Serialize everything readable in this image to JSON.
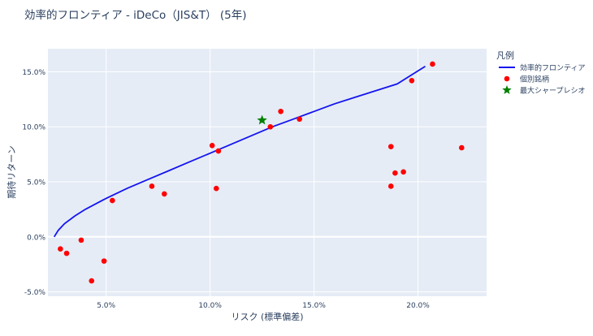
{
  "chart_data": {
    "type": "scatter",
    "title": "効率的フロンティア - iDeCo（JIS&T） (5年)",
    "xlabel": "リスク (標準偏差)",
    "ylabel": "期待リターン",
    "xlim": [
      0.022,
      0.233
    ],
    "ylim": [
      -0.054,
      0.171
    ],
    "x_ticks": [
      {
        "value": 0.05,
        "label": "5.0%"
      },
      {
        "value": 0.1,
        "label": "10.0%"
      },
      {
        "value": 0.15,
        "label": "15.0%"
      },
      {
        "value": 0.2,
        "label": "20.0%"
      }
    ],
    "y_ticks": [
      {
        "value": -0.05,
        "label": "-5.0%"
      },
      {
        "value": 0.0,
        "label": "0.0%"
      },
      {
        "value": 0.05,
        "label": "5.0%"
      },
      {
        "value": 0.1,
        "label": "10.0%"
      },
      {
        "value": 0.15,
        "label": "15.0%"
      }
    ],
    "grid": true,
    "legend": {
      "title": "凡例",
      "position": "right",
      "entries": [
        {
          "label": "効率的フロンティア",
          "kind": "line",
          "color": "#1414f0"
        },
        {
          "label": "個別銘柄",
          "kind": "dot",
          "color": "#ff0000"
        },
        {
          "label": "最大シャープレシオ",
          "kind": "star",
          "color": "#008000"
        }
      ]
    },
    "series": [
      {
        "name": "効率的フロンティア",
        "kind": "line",
        "color": "#1414f0",
        "points": [
          [
            0.025,
            0.0
          ],
          [
            0.027,
            0.006
          ],
          [
            0.03,
            0.012
          ],
          [
            0.035,
            0.019
          ],
          [
            0.04,
            0.025
          ],
          [
            0.05,
            0.035
          ],
          [
            0.06,
            0.044
          ],
          [
            0.07,
            0.052
          ],
          [
            0.08,
            0.06
          ],
          [
            0.09,
            0.068
          ],
          [
            0.1,
            0.076
          ],
          [
            0.11,
            0.084
          ],
          [
            0.12,
            0.092
          ],
          [
            0.13,
            0.1
          ],
          [
            0.14,
            0.107
          ],
          [
            0.15,
            0.114
          ],
          [
            0.16,
            0.121
          ],
          [
            0.17,
            0.127
          ],
          [
            0.18,
            0.133
          ],
          [
            0.19,
            0.139
          ],
          [
            0.2035,
            0.155
          ]
        ]
      },
      {
        "name": "個別銘柄",
        "kind": "dot",
        "color": "#ff0000",
        "points": [
          [
            0.028,
            -0.011
          ],
          [
            0.031,
            -0.015
          ],
          [
            0.038,
            -0.003
          ],
          [
            0.043,
            -0.04
          ],
          [
            0.049,
            -0.022
          ],
          [
            0.053,
            0.033
          ],
          [
            0.072,
            0.046
          ],
          [
            0.078,
            0.039
          ],
          [
            0.101,
            0.083
          ],
          [
            0.103,
            0.044
          ],
          [
            0.104,
            0.078
          ],
          [
            0.129,
            0.1
          ],
          [
            0.134,
            0.114
          ],
          [
            0.143,
            0.107
          ],
          [
            0.187,
            0.082
          ],
          [
            0.187,
            0.046
          ],
          [
            0.189,
            0.058
          ],
          [
            0.193,
            0.059
          ],
          [
            0.197,
            0.142
          ],
          [
            0.207,
            0.157
          ],
          [
            0.221,
            0.081
          ]
        ]
      },
      {
        "name": "最大シャープレシオ",
        "kind": "star",
        "color": "#008000",
        "points": [
          [
            0.125,
            0.106
          ]
        ]
      }
    ]
  }
}
